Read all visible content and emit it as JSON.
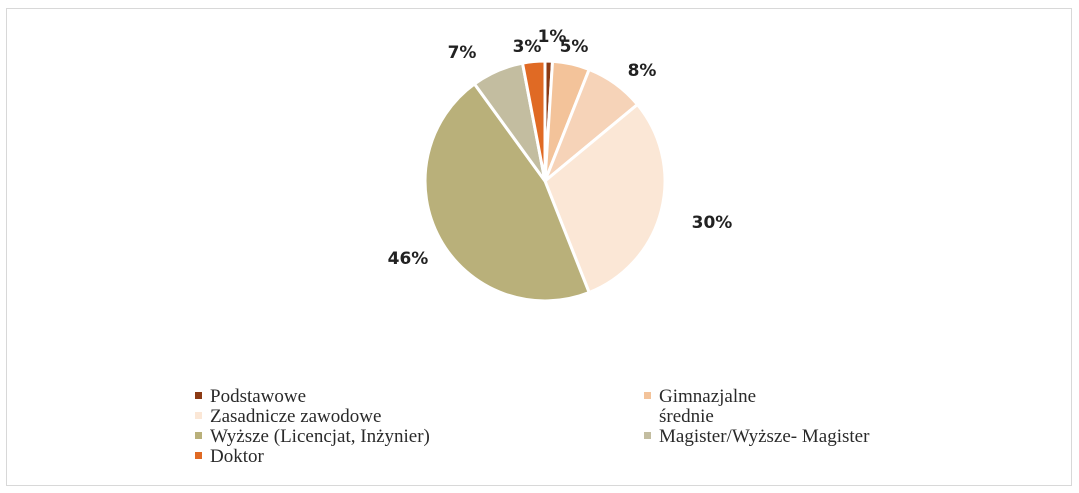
{
  "chart_data": {
    "type": "pie",
    "title": "",
    "slices": [
      {
        "label": "Podstawowe",
        "value": 1,
        "display": "1%",
        "color": "#8b3a14"
      },
      {
        "label": "Gimnazjalne",
        "value": 5,
        "display": "5%",
        "color": "#f3c39a"
      },
      {
        "label": "Zasadnicze zawodowe",
        "value": 8,
        "display": "8%",
        "color": "#f6d3b8"
      },
      {
        "label": "średnie",
        "value": 30,
        "display": "30%",
        "color": "#fbe7d6"
      },
      {
        "label": "Wyższe (Licencjat, Inżynier)",
        "value": 46,
        "display": "46%",
        "color": "#b9b07a"
      },
      {
        "label": "Magister/Wyższe- Magister",
        "value": 7,
        "display": "7%",
        "color": "#c3bda0"
      },
      {
        "label": "Doktor",
        "value": 3,
        "display": "3%",
        "color": "#e06a24"
      }
    ],
    "legend": {
      "position": "bottom",
      "items": [
        {
          "label": "Podstawowe",
          "color": "#8b3a14"
        },
        {
          "label": "Gimnazjalne",
          "color": "#f3c39a"
        },
        {
          "label": "Zasadnicze zawodowe",
          "color": "#fbe7d6"
        },
        {
          "label": "Wyższe (Licencjat, Inżynier)",
          "color": "#b9b07a"
        },
        {
          "label": "Magister/Wyższe- Magister",
          "color": "#c3bda0"
        },
        {
          "label": "Doktor",
          "color": "#e06a24"
        }
      ],
      "extra_text": "średnie"
    }
  }
}
